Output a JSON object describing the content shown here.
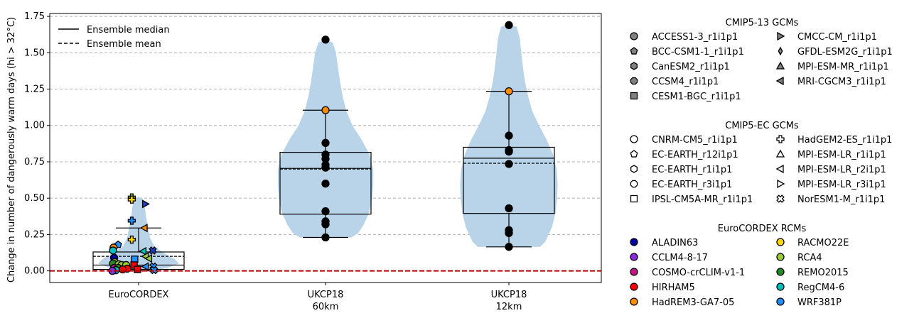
{
  "chart_data": {
    "type": "violin",
    "ylabel": "Change in number of dangerously warm days (hi > 32°C)",
    "ylim": [
      -0.08,
      1.77
    ],
    "yticks": [
      "0.00",
      "0.25",
      "0.50",
      "0.75",
      "1.00",
      "1.25",
      "1.50",
      "1.75"
    ],
    "ytick_values": [
      0,
      0.25,
      0.5,
      0.75,
      1.0,
      1.25,
      1.5,
      1.75
    ],
    "grid": "horizontal dashed",
    "zero_line_color": "#b00000",
    "violin_color": "#b9d3e9",
    "categories": [
      {
        "line1": "EuroCORDEX",
        "line2": ""
      },
      {
        "line1": "UKCP18",
        "line2": "60km"
      },
      {
        "line1": "UKCP18",
        "line2": "12km"
      }
    ],
    "groups": [
      {
        "box": {
          "q1": 0.01,
          "q3": 0.13,
          "median": 0.04,
          "mean": 0.1,
          "whisker_low": 0.0,
          "whisker_high": 0.295
        },
        "violin": [
          [
            0.0,
            0.28
          ],
          [
            0.02,
            0.55
          ],
          [
            0.05,
            0.78
          ],
          [
            0.08,
            0.7
          ],
          [
            0.12,
            0.5
          ],
          [
            0.17,
            0.3
          ],
          [
            0.23,
            0.22
          ],
          [
            0.3,
            0.18
          ],
          [
            0.38,
            0.14
          ],
          [
            0.44,
            0.12
          ],
          [
            0.49,
            0.09
          ],
          [
            0.51,
            0.0
          ]
        ],
        "points": [
          {
            "y": 0.505,
            "marker": "plus",
            "color": "#9acd32",
            "dx": -0.12
          },
          {
            "y": 0.49,
            "marker": "plus",
            "color": "#ffd700",
            "dx": -0.12
          },
          {
            "y": 0.46,
            "marker": "triangle-right-filled",
            "color": "#1f3fbf",
            "dx": 0.12
          },
          {
            "y": 0.345,
            "marker": "plus",
            "color": "#1e90ff",
            "dx": -0.12
          },
          {
            "y": 0.295,
            "marker": "triangle-left-filled",
            "color": "#ff8c00",
            "dx": 0.1
          },
          {
            "y": 0.215,
            "marker": "plus",
            "color": "#ffd700",
            "dx": -0.12
          },
          {
            "y": 0.18,
            "marker": "pentagon",
            "color": "#1e90ff",
            "dx": -0.36
          },
          {
            "y": 0.16,
            "marker": "circle",
            "color": "#ff8c00",
            "dx": -0.44
          },
          {
            "y": 0.14,
            "marker": "circle",
            "color": "#00bfbf",
            "dx": -0.45
          },
          {
            "y": 0.14,
            "marker": "x",
            "color": "#1f3fbf",
            "dx": 0.25
          },
          {
            "y": 0.135,
            "marker": "triangle-left-filled",
            "color": "#00bfbf",
            "dx": 0.08
          },
          {
            "y": 0.1,
            "marker": "triangle-left-filled",
            "color": "#9acd32",
            "dx": 0.12
          },
          {
            "y": 0.09,
            "marker": "circle",
            "color": "#0000a0",
            "dx": -0.43
          },
          {
            "y": 0.085,
            "marker": "triangle-left-filled",
            "color": "#9acd32",
            "dx": 0.18
          },
          {
            "y": 0.08,
            "marker": "square",
            "color": "#1e90ff",
            "dx": -0.07
          },
          {
            "y": 0.06,
            "marker": "circle",
            "color": "#9acd32",
            "dx": -0.42
          },
          {
            "y": 0.05,
            "marker": "circle",
            "color": "#228b22",
            "dx": -0.45
          },
          {
            "y": 0.045,
            "marker": "circle",
            "color": "#9acd32",
            "dx": -0.35
          },
          {
            "y": 0.04,
            "marker": "circle",
            "color": "#9acd32",
            "dx": -0.3
          },
          {
            "y": 0.04,
            "marker": "circle",
            "color": "#9acd32",
            "dx": -0.22
          },
          {
            "y": 0.04,
            "marker": "square",
            "color": "#ff0000",
            "dx": -0.08
          },
          {
            "y": 0.03,
            "marker": "triangle-left-filled",
            "color": "#1e90ff",
            "dx": 0.12
          },
          {
            "y": 0.03,
            "marker": "x",
            "color": "#1e90ff",
            "dx": 0.26
          },
          {
            "y": 0.02,
            "marker": "circle",
            "color": "#c71585",
            "dx": -0.43
          },
          {
            "y": 0.02,
            "marker": "circle",
            "color": "#228b22",
            "dx": -0.36
          },
          {
            "y": 0.015,
            "marker": "circle",
            "color": "#ff0000",
            "dx": -0.2
          },
          {
            "y": 0.01,
            "marker": "circle",
            "color": "#ff0000",
            "dx": -0.28
          },
          {
            "y": 0.01,
            "marker": "square",
            "color": "#ff0000",
            "dx": -0.02
          },
          {
            "y": 0.005,
            "marker": "circle",
            "color": "#00bfbf",
            "dx": -0.4
          },
          {
            "y": 0.005,
            "marker": "x",
            "color": "#1e90ff",
            "dx": 0.27
          },
          {
            "y": 0.0,
            "marker": "circle",
            "color": "#8a2be2",
            "dx": -0.46
          }
        ]
      },
      {
        "box": {
          "q1": 0.39,
          "q3": 0.815,
          "median": 0.705,
          "mean": 0.7,
          "whisker_low": 0.23,
          "whisker_high": 1.105
        },
        "violin": [
          [
            0.23,
            0.5
          ],
          [
            0.26,
            0.63
          ],
          [
            0.32,
            0.74
          ],
          [
            0.4,
            0.84
          ],
          [
            0.5,
            0.9
          ],
          [
            0.6,
            0.92
          ],
          [
            0.7,
            0.92
          ],
          [
            0.8,
            0.85
          ],
          [
            0.9,
            0.7
          ],
          [
            1.0,
            0.52
          ],
          [
            1.1,
            0.4
          ],
          [
            1.2,
            0.33
          ],
          [
            1.3,
            0.28
          ],
          [
            1.4,
            0.24
          ],
          [
            1.5,
            0.2
          ],
          [
            1.57,
            0.14
          ],
          [
            1.59,
            0.0
          ]
        ],
        "points": [
          {
            "y": 1.59,
            "marker": "circle",
            "color": "#000000",
            "dx": 0
          },
          {
            "y": 1.105,
            "marker": "circle",
            "color": "#ff8c00",
            "dx": 0
          },
          {
            "y": 0.88,
            "marker": "circle",
            "color": "#000000",
            "dx": 0
          },
          {
            "y": 0.8,
            "marker": "circle",
            "color": "#000000",
            "dx": 0
          },
          {
            "y": 0.77,
            "marker": "circle",
            "color": "#000000",
            "dx": 0
          },
          {
            "y": 0.73,
            "marker": "circle",
            "color": "#000000",
            "dx": 0
          },
          {
            "y": 0.71,
            "marker": "circle",
            "color": "#000000",
            "dx": 0
          },
          {
            "y": 0.6,
            "marker": "circle",
            "color": "#000000",
            "dx": 0
          },
          {
            "y": 0.41,
            "marker": "circle",
            "color": "#000000",
            "dx": 0
          },
          {
            "y": 0.34,
            "marker": "circle",
            "color": "#000000",
            "dx": 0
          },
          {
            "y": 0.32,
            "marker": "circle",
            "color": "#000000",
            "dx": 0
          },
          {
            "y": 0.23,
            "marker": "circle",
            "color": "#000000",
            "dx": 0
          }
        ]
      },
      {
        "box": {
          "q1": 0.395,
          "q3": 0.85,
          "median": 0.775,
          "mean": 0.74,
          "whisker_low": 0.165,
          "whisker_high": 1.235
        },
        "violin": [
          [
            0.165,
            0.6
          ],
          [
            0.2,
            0.7
          ],
          [
            0.3,
            0.83
          ],
          [
            0.4,
            0.9
          ],
          [
            0.5,
            0.93
          ],
          [
            0.6,
            0.94
          ],
          [
            0.7,
            0.92
          ],
          [
            0.8,
            0.85
          ],
          [
            0.9,
            0.73
          ],
          [
            1.0,
            0.58
          ],
          [
            1.1,
            0.45
          ],
          [
            1.2,
            0.37
          ],
          [
            1.3,
            0.31
          ],
          [
            1.4,
            0.27
          ],
          [
            1.5,
            0.24
          ],
          [
            1.6,
            0.21
          ],
          [
            1.68,
            0.15
          ],
          [
            1.69,
            0.0
          ]
        ],
        "points": [
          {
            "y": 1.69,
            "marker": "circle",
            "color": "#000000",
            "dx": 0
          },
          {
            "y": 1.235,
            "marker": "circle",
            "color": "#ff8c00",
            "dx": 0
          },
          {
            "y": 0.93,
            "marker": "circle",
            "color": "#000000",
            "dx": 0
          },
          {
            "y": 0.83,
            "marker": "circle",
            "color": "#000000",
            "dx": 0
          },
          {
            "y": 0.82,
            "marker": "circle",
            "color": "#000000",
            "dx": 0
          },
          {
            "y": 0.735,
            "marker": "circle",
            "color": "#000000",
            "dx": 0
          },
          {
            "y": 0.43,
            "marker": "circle",
            "color": "#000000",
            "dx": 0
          },
          {
            "y": 0.28,
            "marker": "circle",
            "color": "#000000",
            "dx": 0
          },
          {
            "y": 0.26,
            "marker": "circle",
            "color": "#000000",
            "dx": 0
          },
          {
            "y": 0.165,
            "marker": "circle",
            "color": "#000000",
            "dx": 0
          }
        ]
      }
    ],
    "inner_legend": [
      {
        "label": "Ensemble median",
        "style": "solid"
      },
      {
        "label": "Ensemble mean",
        "style": "dashed"
      }
    ],
    "legend_sections": [
      {
        "title": "CMIP5-13 GCMs",
        "col1": [
          {
            "label": "ACCESS1-3_r1i1p1",
            "marker": "circle",
            "fill": "#808080"
          },
          {
            "label": "BCC-CSM1-1_r1i1p1",
            "marker": "pentagon",
            "fill": "#808080"
          },
          {
            "label": "CanESM2_r1i1p1",
            "marker": "hexagon",
            "fill": "#808080"
          },
          {
            "label": "CCSM4_r1i1p1",
            "marker": "octagon",
            "fill": "#808080"
          },
          {
            "label": "CESM1-BGC_r1i1p1",
            "marker": "square",
            "fill": "#808080"
          }
        ],
        "col2": [
          {
            "label": "CMCC-CM_r1i1p1",
            "marker": "triangle-right",
            "fill": "#808080"
          },
          {
            "label": "GFDL-ESM2G_r1i1p1",
            "marker": "thin-diamond",
            "fill": "#808080"
          },
          {
            "label": "MPI-ESM-MR_r1i1p1",
            "marker": "triangle-up",
            "fill": "#808080"
          },
          {
            "label": "MRI-CGCM3_r1i1p1",
            "marker": "triangle-left",
            "fill": "#808080"
          }
        ]
      },
      {
        "title": "CMIP5-EC GCMs",
        "col1": [
          {
            "label": "CNRM-CM5_r1i1p1",
            "marker": "circle",
            "fill": "#ffffff"
          },
          {
            "label": "EC-EARTH_r12i1p1",
            "marker": "pentagon",
            "fill": "#ffffff"
          },
          {
            "label": "EC-EARTH_r1i1p1",
            "marker": "hexagon",
            "fill": "#ffffff"
          },
          {
            "label": "EC-EARTH_r3i1p1",
            "marker": "octagon",
            "fill": "#ffffff"
          },
          {
            "label": "IPSL-CM5A-MR_r1i1p1",
            "marker": "square",
            "fill": "#ffffff"
          }
        ],
        "col2": [
          {
            "label": "HadGEM2-ES_r1i1p1",
            "marker": "plus",
            "fill": "#ffffff"
          },
          {
            "label": "MPI-ESM-LR_r1i1p1",
            "marker": "triangle-up",
            "fill": "#ffffff"
          },
          {
            "label": "MPI-ESM-LR_r2i1p1",
            "marker": "triangle-left",
            "fill": "#ffffff"
          },
          {
            "label": "MPI-ESM-LR_r3i1p1",
            "marker": "triangle-right",
            "fill": "#ffffff"
          },
          {
            "label": "NorESM1-M_r1i1p1",
            "marker": "x",
            "fill": "#ffffff"
          }
        ]
      },
      {
        "title": "EuroCORDEX RCMs",
        "col1": [
          {
            "label": "ALADIN63",
            "marker": "circle",
            "fill": "#0000a0"
          },
          {
            "label": "CCLM4-8-17",
            "marker": "circle",
            "fill": "#8a2be2"
          },
          {
            "label": "COSMO-crCLIM-v1-1",
            "marker": "circle",
            "fill": "#c71585"
          },
          {
            "label": "HIRHAM5",
            "marker": "circle",
            "fill": "#ff0000"
          },
          {
            "label": "HadREM3-GA7-05",
            "marker": "circle",
            "fill": "#ff8c00"
          }
        ],
        "col2": [
          {
            "label": "RACMO22E",
            "marker": "circle",
            "fill": "#ffd700"
          },
          {
            "label": "RCA4",
            "marker": "circle",
            "fill": "#9acd32"
          },
          {
            "label": "REMO2015",
            "marker": "circle",
            "fill": "#228b22"
          },
          {
            "label": "RegCM4-6",
            "marker": "circle",
            "fill": "#00bfbf"
          },
          {
            "label": "WRF381P",
            "marker": "circle",
            "fill": "#1e90ff"
          }
        ]
      }
    ]
  }
}
